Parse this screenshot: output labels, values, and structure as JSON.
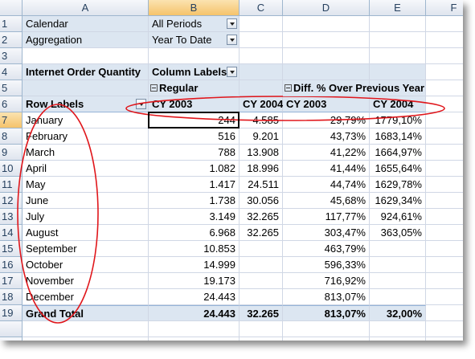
{
  "column_headers": [
    "A",
    "B",
    "C",
    "D",
    "E",
    "F"
  ],
  "row_numbers": [
    "1",
    "2",
    "3",
    "4",
    "5",
    "6",
    "7",
    "8",
    "9",
    "10",
    "11",
    "12",
    "13",
    "14",
    "15",
    "16",
    "17",
    "18",
    "19"
  ],
  "filters": [
    {
      "label": "Calendar",
      "value": "All Periods"
    },
    {
      "label": "Aggregation",
      "value": "Year To Date"
    }
  ],
  "pivot": {
    "measure": "Internet Order Quantity",
    "column_labels": "Column Labels",
    "groups": [
      "Regular",
      "Diff. % Over Previous Year"
    ],
    "row_labels": "Row Labels",
    "headers": [
      "CY 2003",
      "CY 2004",
      "CY 2003",
      "CY 2004"
    ],
    "rows": [
      [
        "January",
        "244",
        "4.585",
        "29,79%",
        "1779,10%"
      ],
      [
        "February",
        "516",
        "9.201",
        "43,73%",
        "1683,14%"
      ],
      [
        "March",
        "788",
        "13.908",
        "41,22%",
        "1664,97%"
      ],
      [
        "April",
        "1.082",
        "18.996",
        "41,44%",
        "1655,64%"
      ],
      [
        "May",
        "1.417",
        "24.511",
        "44,74%",
        "1629,78%"
      ],
      [
        "June",
        "1.738",
        "30.056",
        "45,68%",
        "1629,34%"
      ],
      [
        "July",
        "3.149",
        "32.265",
        "117,77%",
        "924,61%"
      ],
      [
        "August",
        "6.968",
        "32.265",
        "303,47%",
        "363,05%"
      ],
      [
        "September",
        "10.853",
        null,
        "463,79%",
        null
      ],
      [
        "October",
        "14.999",
        null,
        "596,33%",
        null
      ],
      [
        "November",
        "19.173",
        null,
        "716,92%",
        null
      ],
      [
        "December",
        "24.443",
        null,
        "813,07%",
        null
      ]
    ],
    "total": [
      "Grand Total",
      "24.443",
      "32.265",
      "813,07%",
      "32,00%"
    ]
  }
}
